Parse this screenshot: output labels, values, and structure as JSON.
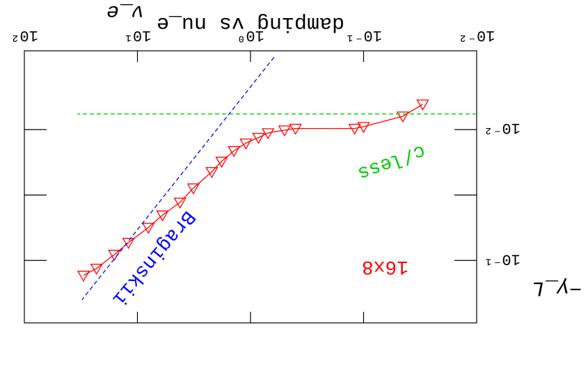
{
  "chart_data": {
    "type": "line",
    "orientation": "rotated 180 degrees",
    "title": "damping vs nu_e",
    "xlabel": "ν_e",
    "ylabel": "−γ_L",
    "x_scale": "log",
    "y_scale": "log",
    "xlim": [
      0.01,
      100
    ],
    "ylim": [
      0.0025,
      0.3
    ],
    "x_ticks": [
      {
        "value": 0.01,
        "label": "10⁻²"
      },
      {
        "value": 0.1,
        "label": "10⁻¹"
      },
      {
        "value": 1,
        "label": "10⁰"
      },
      {
        "value": 10,
        "label": "10¹"
      },
      {
        "value": 100,
        "label": "10²"
      }
    ],
    "y_ticks": [
      {
        "value": 0.01,
        "label": "10⁻²"
      },
      {
        "value": 0.1,
        "label": "10⁻¹"
      }
    ],
    "series": [
      {
        "name": "16x8",
        "color": "#ff0000",
        "marker": "triangle",
        "x": [
          0.03,
          0.045,
          0.1,
          0.12,
          0.4,
          0.5,
          0.7,
          0.85,
          1.1,
          1.4,
          1.8,
          2.2,
          3.2,
          4.2,
          6,
          8,
          12,
          16,
          23,
          30
        ],
        "y": [
          0.0064,
          0.0079,
          0.0095,
          0.0098,
          0.0098,
          0.0101,
          0.0106,
          0.0115,
          0.0127,
          0.0145,
          0.0175,
          0.021,
          0.028,
          0.036,
          0.045,
          0.056,
          0.073,
          0.09,
          0.115,
          0.13
        ]
      },
      {
        "name": "Braginskii",
        "color": "#0000ff",
        "style": "dashed",
        "x": [
          0.62,
          31
        ],
        "y": [
          0.0028,
          0.2
        ]
      },
      {
        "name": "c/less",
        "color": "#00cc00",
        "style": "dashed",
        "x": [
          0.01,
          34
        ],
        "y": [
          0.0076,
          0.0076
        ]
      }
    ],
    "annotations": [
      {
        "text": "16x8",
        "color": "#ff0000"
      },
      {
        "text": "Braginskii",
        "color": "#0000ff"
      },
      {
        "text": "c/less",
        "color": "#00cc00"
      }
    ],
    "grid": false
  }
}
